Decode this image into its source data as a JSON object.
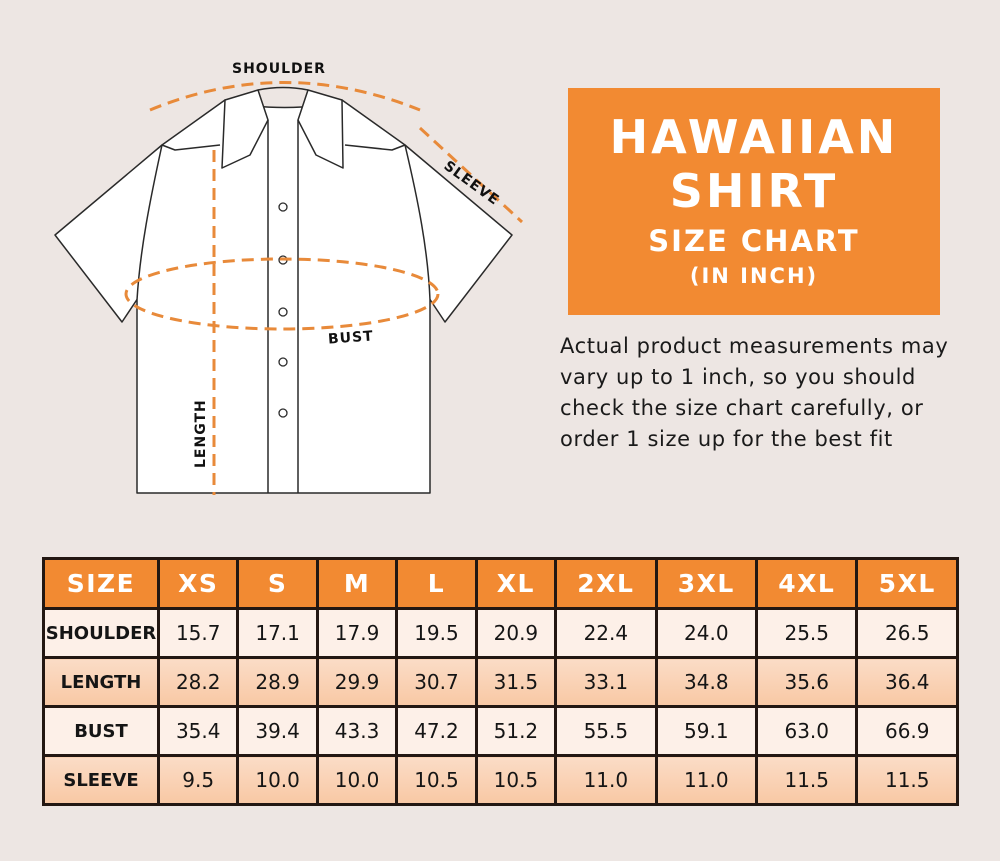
{
  "diagram": {
    "labels": {
      "shoulder": "SHOULDER",
      "sleeve": "SLEEVE",
      "bust": "BUST",
      "length": "LENGTH"
    }
  },
  "title": {
    "line1": "HAWAIIAN",
    "line2": "SHIRT",
    "line3": "SIZE CHART",
    "line4": "(IN INCH)"
  },
  "note": "Actual product measurements may vary up to 1 inch, so you should check the size chart carefully, or order 1 size up for the best fit",
  "colors": {
    "accent": "#f28a32",
    "background": "#ede6e3",
    "row_light": "#fdf0e8",
    "row_dark": "#f8c8a4",
    "dash": "#e88a3a"
  },
  "table": {
    "header": [
      "SIZE",
      "XS",
      "S",
      "M",
      "L",
      "XL",
      "2XL",
      "3XL",
      "4XL",
      "5XL"
    ],
    "rows": [
      {
        "label": "SHOULDER",
        "values": [
          "15.7",
          "17.1",
          "17.9",
          "19.5",
          "20.9",
          "22.4",
          "24.0",
          "25.5",
          "26.5"
        ]
      },
      {
        "label": "LENGTH",
        "values": [
          "28.2",
          "28.9",
          "29.9",
          "30.7",
          "31.5",
          "33.1",
          "34.8",
          "35.6",
          "36.4"
        ]
      },
      {
        "label": "BUST",
        "values": [
          "35.4",
          "39.4",
          "43.3",
          "47.2",
          "51.2",
          "55.5",
          "59.1",
          "63.0",
          "66.9"
        ]
      },
      {
        "label": "SLEEVE",
        "values": [
          "9.5",
          "10.0",
          "10.0",
          "10.5",
          "10.5",
          "11.0",
          "11.0",
          "11.5",
          "11.5"
        ]
      }
    ]
  }
}
